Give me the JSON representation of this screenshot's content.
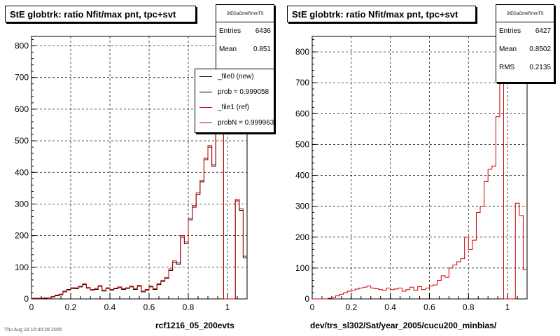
{
  "chart_data": [
    {
      "type": "bar",
      "title": "StE globtrk: ratio Nfit/max pnt, tpc+svt",
      "xlabel": "rcf1216_05_200evts",
      "ylabel": "",
      "xlim": [
        0,
        1.1
      ],
      "ylim": [
        0,
        830
      ],
      "grid": true,
      "xticks": [
        "0",
        "0.2",
        "0.4",
        "0.6",
        "0.8",
        "1"
      ],
      "yticks": [
        "0",
        "100",
        "200",
        "300",
        "400",
        "500",
        "600",
        "700",
        "800"
      ],
      "stats": {
        "name": "StEGaGrtrkRmmTS",
        "rows": [
          {
            "label": "Entries",
            "value": "6436"
          },
          {
            "label": "Mean",
            "value": "0.851"
          }
        ]
      },
      "legend": [
        {
          "label": "_file0 (new)",
          "color": "#000000"
        },
        {
          "label": "prob = 0.999058",
          "color": "#000000"
        },
        {
          "label": "_file1 (ref)",
          "color": "#cc0000"
        },
        {
          "label": "probN = 0.999963",
          "color": "#cc0000"
        }
      ],
      "bin_width": 0.02,
      "bins_start": 0.0,
      "series": [
        {
          "name": "_file0 (new)",
          "color": "#000000",
          "values": [
            2,
            2,
            2,
            2,
            3,
            6,
            10,
            13,
            22,
            30,
            35,
            32,
            38,
            45,
            34,
            28,
            30,
            40,
            25,
            33,
            28,
            32,
            35,
            30,
            33,
            38,
            30,
            40,
            22,
            28,
            38,
            30,
            45,
            55,
            65,
            90,
            115,
            110,
            195,
            175,
            250,
            290,
            330,
            370,
            440,
            480,
            420,
            620,
            800,
            0,
            0,
            0,
            310,
            280,
            130,
            165
          ]
        },
        {
          "name": "_file1 (ref)",
          "color": "#cc0000",
          "values": [
            2,
            2,
            2,
            3,
            3,
            8,
            12,
            15,
            25,
            28,
            32,
            35,
            40,
            48,
            36,
            30,
            33,
            42,
            28,
            35,
            30,
            34,
            38,
            32,
            35,
            40,
            33,
            43,
            25,
            30,
            40,
            32,
            48,
            58,
            68,
            95,
            120,
            115,
            200,
            180,
            255,
            295,
            335,
            375,
            445,
            485,
            425,
            625,
            805,
            0,
            0,
            0,
            315,
            285,
            135,
            170
          ]
        }
      ]
    },
    {
      "type": "bar",
      "title": "StE globtrk: ratio Nfit/max pnt, tpc+svt",
      "xlabel": "dev/trs_sl302/Sat/year_2005/cucu200_minbias/",
      "ylabel": "",
      "xlim": [
        0,
        1.1
      ],
      "ylim": [
        0,
        850
      ],
      "grid": true,
      "xticks": [
        "0",
        "0.2",
        "0.4",
        "0.6",
        "0.8",
        "1"
      ],
      "yticks": [
        "0",
        "100",
        "200",
        "300",
        "400",
        "500",
        "600",
        "700",
        "800"
      ],
      "stats": {
        "name": "StEGaGrtrkRmmTS",
        "rows": [
          {
            "label": "Entries",
            "value": "6427"
          },
          {
            "label": "Mean",
            "value": "0.8502"
          },
          {
            "label": "RMS",
            "value": "0.2135"
          }
        ]
      },
      "bin_width": 0.02,
      "bins_start": 0.0,
      "series": [
        {
          "name": "",
          "color": "#cc0000",
          "values": [
            0,
            0,
            0,
            0,
            2,
            5,
            10,
            15,
            20,
            25,
            28,
            32,
            35,
            38,
            42,
            35,
            33,
            30,
            28,
            35,
            30,
            32,
            35,
            25,
            30,
            38,
            28,
            40,
            30,
            35,
            42,
            45,
            60,
            75,
            70,
            100,
            110,
            120,
            130,
            200,
            160,
            190,
            280,
            300,
            380,
            420,
            430,
            590,
            850,
            0,
            0,
            0,
            310,
            270,
            95,
            170
          ]
        }
      ]
    }
  ],
  "footer": "Thu Aug 18 10:40:28 2005"
}
